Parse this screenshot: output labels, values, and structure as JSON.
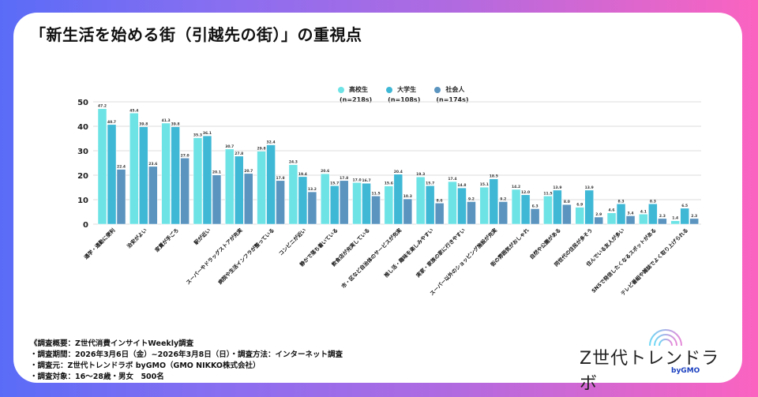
{
  "title": "「新生活を始める街（引越先の街）」の重視点",
  "legend": [
    {
      "label": "高校生",
      "n": "(n=218s)",
      "color": "#6ee3e6"
    },
    {
      "label": "大学生",
      "n": "(n=108s)",
      "color": "#3fb8d6"
    },
    {
      "label": "社会人",
      "n": "(n=174s)",
      "color": "#5a94bf"
    }
  ],
  "chart_data": {
    "type": "bar",
    "title": "「新生活を始める街（引越先の街）」の重視点",
    "xlabel": "",
    "ylabel": "",
    "ylim": [
      0,
      50
    ],
    "yticks": [
      0,
      10,
      20,
      30,
      40,
      50
    ],
    "grid": true,
    "legend_position": "top-center",
    "categories": [
      "通学・通勤に便利",
      "治安がよい",
      "家賃が手ごろ",
      "駅が近い",
      "スーパーやドラッグストアが充実",
      "病院や生活インフラが整っている",
      "コンビニが近い",
      "静かで落ち着いている",
      "飲食店が充実している",
      "市・区など自治体のサービスが充実",
      "推し活・趣味を楽しみやすい",
      "実家・家族の家に行きやすい",
      "スーパー以外のショッピング施設が充実",
      "街の雰囲気がおしゃれ",
      "自然や公園がある",
      "同世代の住民が多そう",
      "住んでいる友人が多い",
      "SNSで発信したくなるスポットがある",
      "テレビ番組や雑誌でよく取り上げられる"
    ],
    "series": [
      {
        "name": "高校生 (n=218s)",
        "color": "#6ee3e6",
        "values": [
          47.2,
          45.4,
          41.3,
          35.3,
          30.7,
          29.8,
          24.3,
          20.6,
          17.0,
          15.6,
          19.3,
          17.4,
          15.1,
          14.2,
          11.5,
          6.9,
          4.6,
          4.1,
          1.4
        ]
      },
      {
        "name": "大学生 (n=108s)",
        "color": "#3fb8d6",
        "values": [
          40.7,
          39.8,
          39.8,
          36.1,
          27.8,
          32.4,
          19.4,
          15.7,
          16.7,
          20.4,
          15.7,
          14.8,
          18.5,
          12.0,
          13.9,
          13.9,
          8.3,
          8.3,
          6.5
        ]
      },
      {
        "name": "社会人 (n=174s)",
        "color": "#5a94bf",
        "values": [
          22.4,
          23.6,
          27.0,
          20.1,
          20.7,
          17.8,
          13.2,
          17.8,
          11.5,
          10.3,
          8.6,
          9.2,
          9.2,
          6.3,
          8.0,
          2.9,
          3.4,
          2.3,
          2.3
        ]
      }
    ]
  },
  "footer": {
    "lines": [
      "《調査概要：Z世代消費インサイトWeekly調査",
      "・調査期間：2026年3月6日（金）~2026年3月8日（日）・調査方法：インターネット調査",
      "・調査元：Z世代トレンドラボ byGMO（GMO NIKKO株式会社）",
      "・調査対象：16〜28歳・男女　500名"
    ]
  },
  "logo": {
    "name": "Z世代トレンドラボ",
    "by": "byGMO"
  }
}
